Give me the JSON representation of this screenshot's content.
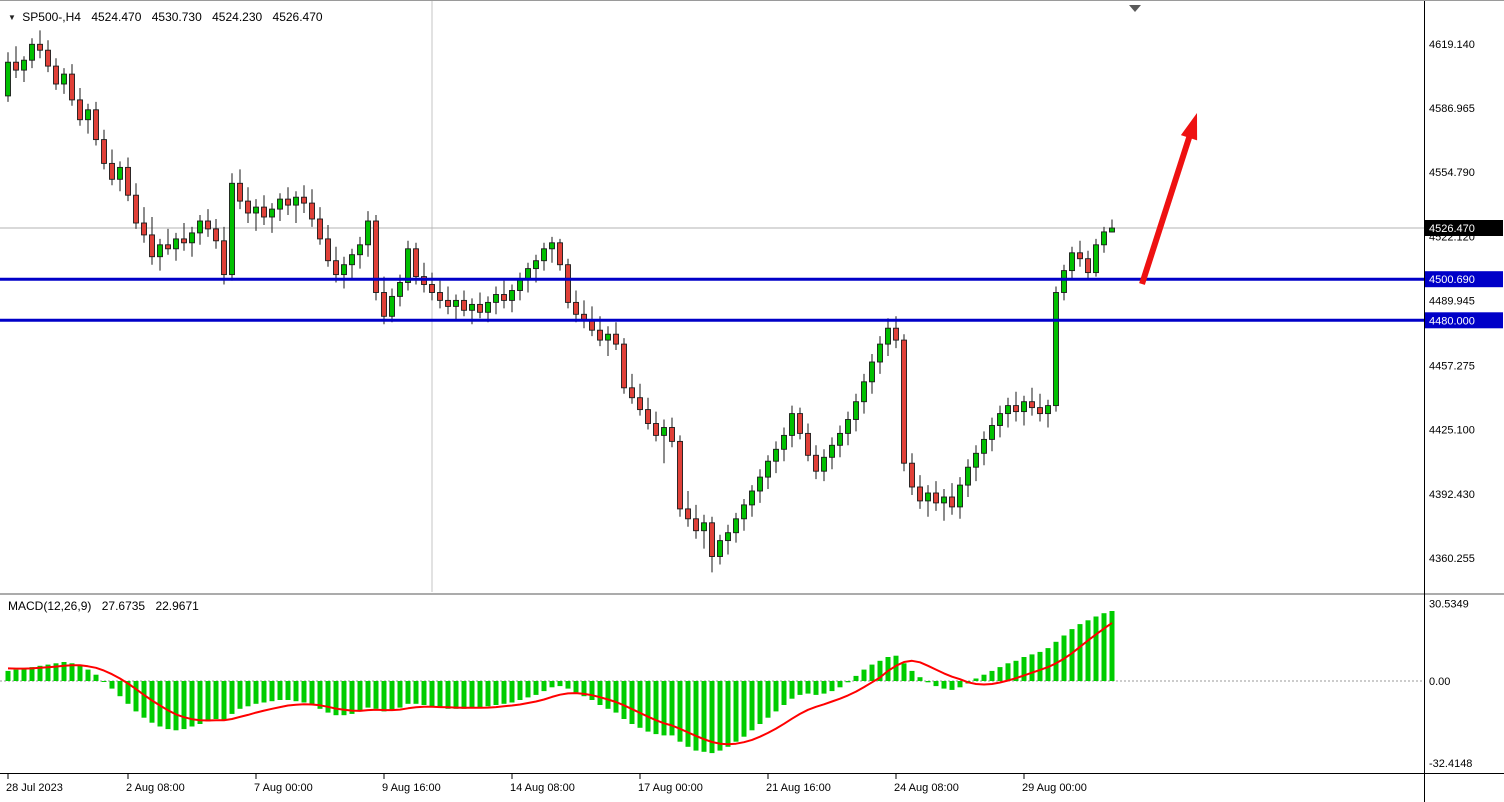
{
  "window": {
    "dropdown_icon": "▼",
    "title_symbol": "SP500-,H4",
    "ohlc": {
      "open": "4524.470",
      "high": "4530.730",
      "low": "4524.230",
      "close": "4526.470"
    }
  },
  "colors": {
    "up": "#00C000",
    "down": "#E04038",
    "wick": "#1a1a1a",
    "macd_hist": "#00CC00",
    "macd_signal": "#FF0000",
    "level": "#0000C8",
    "badge_current_bg": "#000000",
    "arrow": "#EE1111"
  },
  "chart_data": [
    {
      "type": "candlestick",
      "symbol": "SP500-",
      "period": "H4",
      "y_top": 4640.8,
      "y_bottom": 4343.5,
      "x_axis_labels": [
        {
          "text": "28 Jul 2023",
          "bar": 0
        },
        {
          "text": "2 Aug 08:00",
          "bar": 15
        },
        {
          "text": "7 Aug 00:00",
          "bar": 31
        },
        {
          "text": "9 Aug 16:00",
          "bar": 47
        },
        {
          "text": "14 Aug 08:00",
          "bar": 63
        },
        {
          "text": "17 Aug 00:00",
          "bar": 79
        },
        {
          "text": "21 Aug 16:00",
          "bar": 95
        },
        {
          "text": "24 Aug 08:00",
          "bar": 111
        },
        {
          "text": "29 Aug 00:00",
          "bar": 127
        }
      ],
      "y_axis_labels": [
        {
          "value": 4619.14,
          "text": "4619.140"
        },
        {
          "value": 4586.965,
          "text": "4586.965"
        },
        {
          "value": 4554.79,
          "text": "4554.790"
        },
        {
          "value": 4522.12,
          "text": "4522.120"
        },
        {
          "value": 4489.945,
          "text": "4489.945"
        },
        {
          "value": 4457.275,
          "text": "4457.275"
        },
        {
          "value": 4425.1,
          "text": "4425.100"
        },
        {
          "value": 4392.43,
          "text": "4392.430"
        },
        {
          "value": 4360.255,
          "text": "4360.255"
        }
      ],
      "levels": [
        {
          "value": 4500.69,
          "text": "4500.690"
        },
        {
          "value": 4480.0,
          "text": "4480.000"
        }
      ],
      "current_price": {
        "value": 4526.47,
        "text": "4526.470"
      },
      "annotations": {
        "trend_arrow": {
          "from": [
            1142,
            283
          ],
          "to": [
            1197,
            112
          ]
        },
        "shift_marker": [
          1135,
          4
        ],
        "vertical_separator_bar": 53
      },
      "candles": [
        [
          4593,
          4615,
          4590,
          4610
        ],
        [
          4610,
          4618,
          4602,
          4606
        ],
        [
          4606,
          4613,
          4600,
          4611
        ],
        [
          4611,
          4622,
          4607,
          4619
        ],
        [
          4619,
          4626,
          4612,
          4616
        ],
        [
          4616,
          4621,
          4605,
          4608
        ],
        [
          4608,
          4612,
          4596,
          4599
        ],
        [
          4599,
          4607,
          4594,
          4604
        ],
        [
          4604,
          4609,
          4588,
          4591
        ],
        [
          4591,
          4597,
          4578,
          4581
        ],
        [
          4581,
          4589,
          4574,
          4586
        ],
        [
          4586,
          4590,
          4568,
          4571
        ],
        [
          4571,
          4576,
          4556,
          4559
        ],
        [
          4559,
          4566,
          4548,
          4551
        ],
        [
          4551,
          4560,
          4545,
          4557
        ],
        [
          4557,
          4562,
          4540,
          4543
        ],
        [
          4543,
          4549,
          4526,
          4529
        ],
        [
          4529,
          4537,
          4519,
          4523
        ],
        [
          4523,
          4532,
          4508,
          4512
        ],
        [
          4512,
          4521,
          4505,
          4518
        ],
        [
          4518,
          4526,
          4513,
          4516
        ],
        [
          4516,
          4524,
          4510,
          4521
        ],
        [
          4521,
          4529,
          4515,
          4519
        ],
        [
          4519,
          4527,
          4512,
          4524
        ],
        [
          4524,
          4533,
          4518,
          4530
        ],
        [
          4530,
          4536,
          4522,
          4526
        ],
        [
          4526,
          4531,
          4516,
          4520
        ],
        [
          4520,
          4527,
          4498,
          4503
        ],
        [
          4503,
          4554,
          4500,
          4549
        ],
        [
          4549,
          4556,
          4536,
          4540
        ],
        [
          4540,
          4547,
          4529,
          4534
        ],
        [
          4534,
          4541,
          4525,
          4537
        ],
        [
          4537,
          4543,
          4528,
          4532
        ],
        [
          4532,
          4539,
          4524,
          4536
        ],
        [
          4536,
          4544,
          4530,
          4541
        ],
        [
          4541,
          4547,
          4533,
          4538
        ],
        [
          4538,
          4545,
          4529,
          4542
        ],
        [
          4542,
          4548,
          4534,
          4539
        ],
        [
          4539,
          4546,
          4527,
          4531
        ],
        [
          4531,
          4537,
          4518,
          4521
        ],
        [
          4521,
          4528,
          4507,
          4510
        ],
        [
          4510,
          4517,
          4499,
          4503
        ],
        [
          4503,
          4512,
          4496,
          4508
        ],
        [
          4508,
          4516,
          4501,
          4513
        ],
        [
          4513,
          4522,
          4506,
          4518
        ],
        [
          4518,
          4535,
          4512,
          4530
        ],
        [
          4530,
          4533,
          4490,
          4494
        ],
        [
          4494,
          4502,
          4478,
          4482
        ],
        [
          4482,
          4496,
          4479,
          4492
        ],
        [
          4492,
          4503,
          4487,
          4499
        ],
        [
          4499,
          4520,
          4495,
          4516
        ],
        [
          4516,
          4519,
          4498,
          4502
        ],
        [
          4502,
          4509,
          4494,
          4498
        ],
        [
          4498,
          4504,
          4490,
          4494
        ],
        [
          4494,
          4500,
          4486,
          4490
        ],
        [
          4490,
          4497,
          4483,
          4487
        ],
        [
          4487,
          4493,
          4480,
          4490
        ],
        [
          4490,
          4495,
          4482,
          4485
        ],
        [
          4485,
          4491,
          4478,
          4488
        ],
        [
          4488,
          4494,
          4481,
          4484
        ],
        [
          4484,
          4492,
          4479,
          4489
        ],
        [
          4489,
          4497,
          4483,
          4493
        ],
        [
          4493,
          4500,
          4486,
          4490
        ],
        [
          4490,
          4498,
          4484,
          4495
        ],
        [
          4495,
          4504,
          4490,
          4501
        ],
        [
          4501,
          4509,
          4494,
          4506
        ],
        [
          4506,
          4513,
          4499,
          4510
        ],
        [
          4510,
          4519,
          4505,
          4516
        ],
        [
          4516,
          4522,
          4509,
          4519
        ],
        [
          4519,
          4521,
          4505,
          4508
        ],
        [
          4508,
          4511,
          4486,
          4489
        ],
        [
          4489,
          4495,
          4479,
          4483
        ],
        [
          4483,
          4490,
          4476,
          4480
        ],
        [
          4480,
          4487,
          4472,
          4475
        ],
        [
          4475,
          4482,
          4467,
          4470
        ],
        [
          4470,
          4477,
          4462,
          4473
        ],
        [
          4473,
          4479,
          4465,
          4468
        ],
        [
          4468,
          4471,
          4443,
          4446
        ],
        [
          4446,
          4453,
          4438,
          4441
        ],
        [
          4441,
          4448,
          4432,
          4435
        ],
        [
          4435,
          4441,
          4425,
          4428
        ],
        [
          4428,
          4434,
          4419,
          4422
        ],
        [
          4422,
          4430,
          4408,
          4426
        ],
        [
          4426,
          4431,
          4416,
          4419
        ],
        [
          4419,
          4422,
          4381,
          4385
        ],
        [
          4385,
          4394,
          4376,
          4380
        ],
        [
          4380,
          4387,
          4370,
          4374
        ],
        [
          4374,
          4382,
          4365,
          4378
        ],
        [
          4378,
          4381,
          4353,
          4361
        ],
        [
          4361,
          4372,
          4357,
          4369
        ],
        [
          4369,
          4377,
          4362,
          4373
        ],
        [
          4373,
          4383,
          4368,
          4380
        ],
        [
          4380,
          4390,
          4374,
          4387
        ],
        [
          4387,
          4397,
          4381,
          4394
        ],
        [
          4394,
          4405,
          4388,
          4401
        ],
        [
          4401,
          4412,
          4395,
          4409
        ],
        [
          4409,
          4419,
          4403,
          4415
        ],
        [
          4415,
          4426,
          4409,
          4422
        ],
        [
          4422,
          4437,
          4416,
          4433
        ],
        [
          4433,
          4436,
          4420,
          4423
        ],
        [
          4423,
          4428,
          4409,
          4412
        ],
        [
          4412,
          4417,
          4400,
          4404
        ],
        [
          4404,
          4415,
          4399,
          4411
        ],
        [
          4411,
          4421,
          4405,
          4417
        ],
        [
          4417,
          4427,
          4411,
          4423
        ],
        [
          4423,
          4434,
          4417,
          4430
        ],
        [
          4430,
          4443,
          4424,
          4439
        ],
        [
          4439,
          4453,
          4433,
          4449
        ],
        [
          4449,
          4463,
          4443,
          4459
        ],
        [
          4459,
          4472,
          4453,
          4468
        ],
        [
          4468,
          4481,
          4462,
          4476
        ],
        [
          4476,
          4482,
          4466,
          4470
        ],
        [
          4470,
          4473,
          4404,
          4408
        ],
        [
          4408,
          4413,
          4392,
          4396
        ],
        [
          4396,
          4402,
          4385,
          4389
        ],
        [
          4389,
          4397,
          4381,
          4393
        ],
        [
          4393,
          4399,
          4384,
          4388
        ],
        [
          4388,
          4395,
          4379,
          4391
        ],
        [
          4391,
          4398,
          4382,
          4386
        ],
        [
          4386,
          4401,
          4380,
          4397
        ],
        [
          4397,
          4410,
          4391,
          4406
        ],
        [
          4406,
          4417,
          4399,
          4413
        ],
        [
          4413,
          4424,
          4407,
          4420
        ],
        [
          4420,
          4431,
          4414,
          4427
        ],
        [
          4427,
          4437,
          4421,
          4433
        ],
        [
          4433,
          4441,
          4426,
          4437
        ],
        [
          4437,
          4444,
          4429,
          4434
        ],
        [
          4434,
          4442,
          4427,
          4439
        ],
        [
          4439,
          4446,
          4432,
          4436
        ],
        [
          4436,
          4443,
          4429,
          4433
        ],
        [
          4433,
          4440,
          4426,
          4437
        ],
        [
          4437,
          4497,
          4434,
          4494
        ],
        [
          4494,
          4508,
          4490,
          4505
        ],
        [
          4505,
          4517,
          4501,
          4514
        ],
        [
          4514,
          4520,
          4507,
          4511
        ],
        [
          4511,
          4515,
          4501,
          4504
        ],
        [
          4504,
          4521,
          4502,
          4518
        ],
        [
          4518,
          4527,
          4514,
          4524.5
        ],
        [
          4524.47,
          4530.73,
          4524.23,
          4526.47
        ]
      ]
    },
    {
      "type": "macd",
      "label": "MACD(12,26,9)",
      "macd_value": "27.6735",
      "signal_value": "22.9671",
      "y_axis_labels": [
        {
          "value": 30.5349,
          "text": "30.5349"
        },
        {
          "value": 0,
          "text": "0.00"
        },
        {
          "value": -32.4148,
          "text": "-32.4148"
        }
      ],
      "histogram": [
        4,
        4.5,
        5,
        5.5,
        6,
        6.5,
        7,
        7.5,
        7,
        6,
        4.5,
        2.5,
        0,
        -3,
        -6,
        -9,
        -12,
        -14.5,
        -16.5,
        -18,
        -19,
        -19.5,
        -19,
        -18,
        -17,
        -16,
        -15,
        -15.5,
        -13,
        -11,
        -10,
        -9,
        -8.5,
        -8,
        -7.5,
        -7.5,
        -8,
        -8.5,
        -9.5,
        -11,
        -12.5,
        -13.5,
        -13.5,
        -13,
        -12,
        -10.5,
        -11,
        -12,
        -11.5,
        -10.5,
        -9,
        -9,
        -9.5,
        -10,
        -10.5,
        -11,
        -11,
        -11,
        -10.5,
        -10.5,
        -10,
        -9.5,
        -9,
        -8.5,
        -7.5,
        -6.5,
        -5.5,
        -4,
        -2.5,
        -2,
        -3,
        -4.5,
        -6,
        -7.5,
        -9.5,
        -11,
        -12.5,
        -15,
        -17,
        -18.5,
        -20,
        -21,
        -21.5,
        -21.5,
        -24,
        -26,
        -27.5,
        -28,
        -28.5,
        -27.5,
        -26,
        -24,
        -22,
        -19.5,
        -17,
        -14.5,
        -12,
        -9.5,
        -7,
        -5.5,
        -5,
        -5.5,
        -5,
        -4,
        -2.5,
        -0.5,
        2,
        4.5,
        6.5,
        8,
        9.5,
        10,
        7,
        4,
        1.5,
        -0.5,
        -2,
        -3,
        -3.5,
        -2.5,
        -1,
        1,
        2.5,
        4,
        5.5,
        7,
        8,
        9.5,
        10.5,
        11.5,
        13,
        15.5,
        18,
        20.5,
        22.5,
        24,
        25.5,
        26.8,
        27.6735
      ],
      "signal": [
        5,
        4.9,
        4.9,
        5,
        5.2,
        5.4,
        5.7,
        6,
        6.2,
        6.2,
        5.8,
        5.2,
        4.1,
        2.7,
        1,
        -1,
        -3.2,
        -5.5,
        -7.7,
        -9.7,
        -11.6,
        -13.2,
        -14.3,
        -15.1,
        -15.5,
        -15.6,
        -15.5,
        -15.5,
        -15,
        -14.2,
        -13.4,
        -12.5,
        -11.7,
        -11,
        -10.3,
        -9.7,
        -9.4,
        -9.2,
        -9.3,
        -9.6,
        -10.2,
        -10.9,
        -11.4,
        -11.7,
        -11.8,
        -11.5,
        -11.4,
        -11.5,
        -11.5,
        -11.3,
        -10.8,
        -10.4,
        -10.2,
        -10.2,
        -10.3,
        -10.4,
        -10.5,
        -10.6,
        -10.6,
        -10.6,
        -10.5,
        -10.3,
        -10,
        -9.7,
        -9.3,
        -8.7,
        -8.1,
        -7.3,
        -6.3,
        -5.4,
        -4.9,
        -4.8,
        -5.1,
        -5.6,
        -6.4,
        -7.3,
        -8.3,
        -9.6,
        -11.1,
        -12.6,
        -14.1,
        -15.5,
        -16.7,
        -17.6,
        -18.9,
        -20.3,
        -21.7,
        -23,
        -24.1,
        -24.8,
        -25,
        -24.8,
        -24.2,
        -23.3,
        -22,
        -20.5,
        -18.8,
        -16.9,
        -14.9,
        -13,
        -11.4,
        -10.2,
        -9.2,
        -8.1,
        -7,
        -5.7,
        -4.2,
        -2.4,
        -0.5,
        1.4,
        4,
        6,
        7.5,
        8,
        7.4,
        6,
        4.5,
        3,
        1.7,
        0.7,
        -0.5,
        -1.2,
        -1.4,
        -1.2,
        -0.6,
        0.2,
        1.1,
        2.2,
        3.3,
        4.4,
        5.5,
        7,
        8.8,
        11,
        13.5,
        16,
        18.4,
        20.7,
        22.9671
      ]
    }
  ]
}
